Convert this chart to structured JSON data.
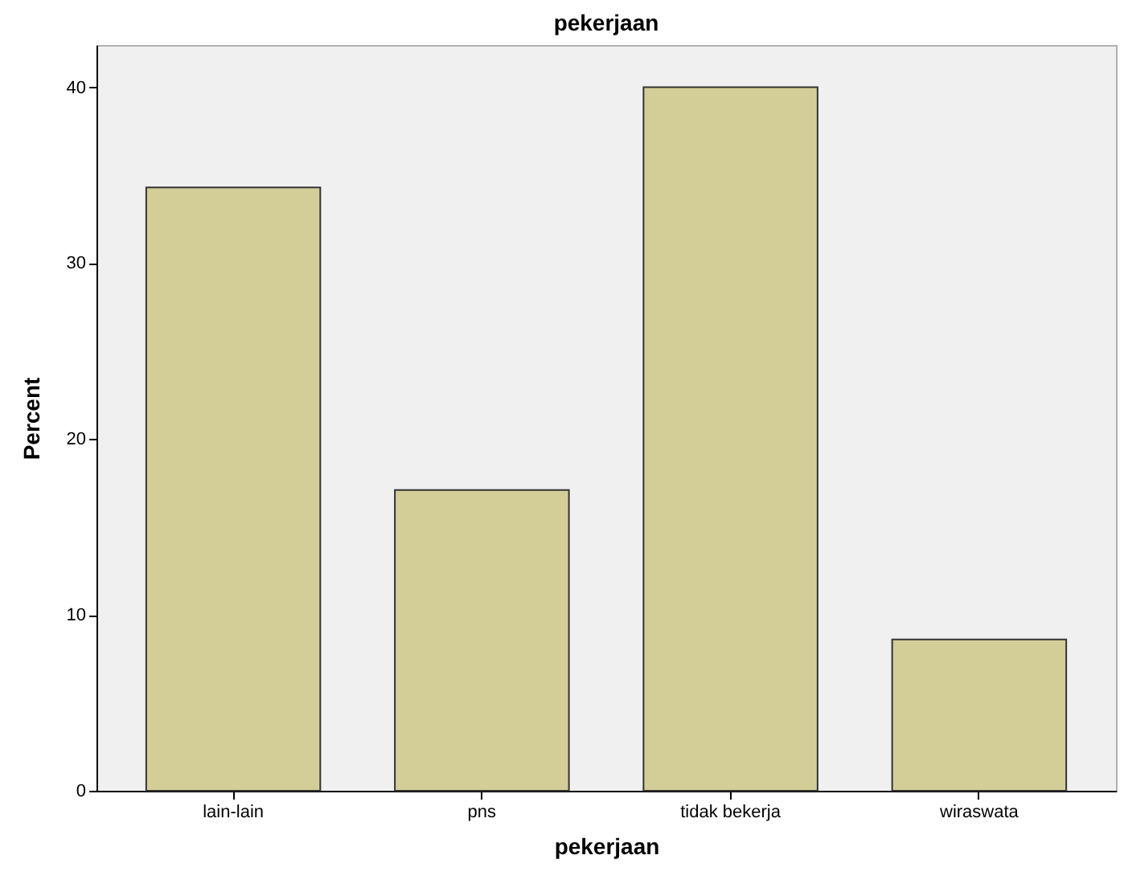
{
  "chart_data": {
    "type": "bar",
    "title": "pekerjaan",
    "xlabel": "pekerjaan",
    "ylabel": "Percent",
    "categories": [
      "lain-lain",
      "pns",
      "tidak bekerja",
      "wiraswata"
    ],
    "values": [
      34.3,
      17.1,
      40.0,
      8.6
    ],
    "color": "#d3ce97",
    "ylim": [
      0,
      42.4
    ],
    "yticks": [
      0,
      10,
      20,
      30,
      40
    ],
    "grid": false
  }
}
